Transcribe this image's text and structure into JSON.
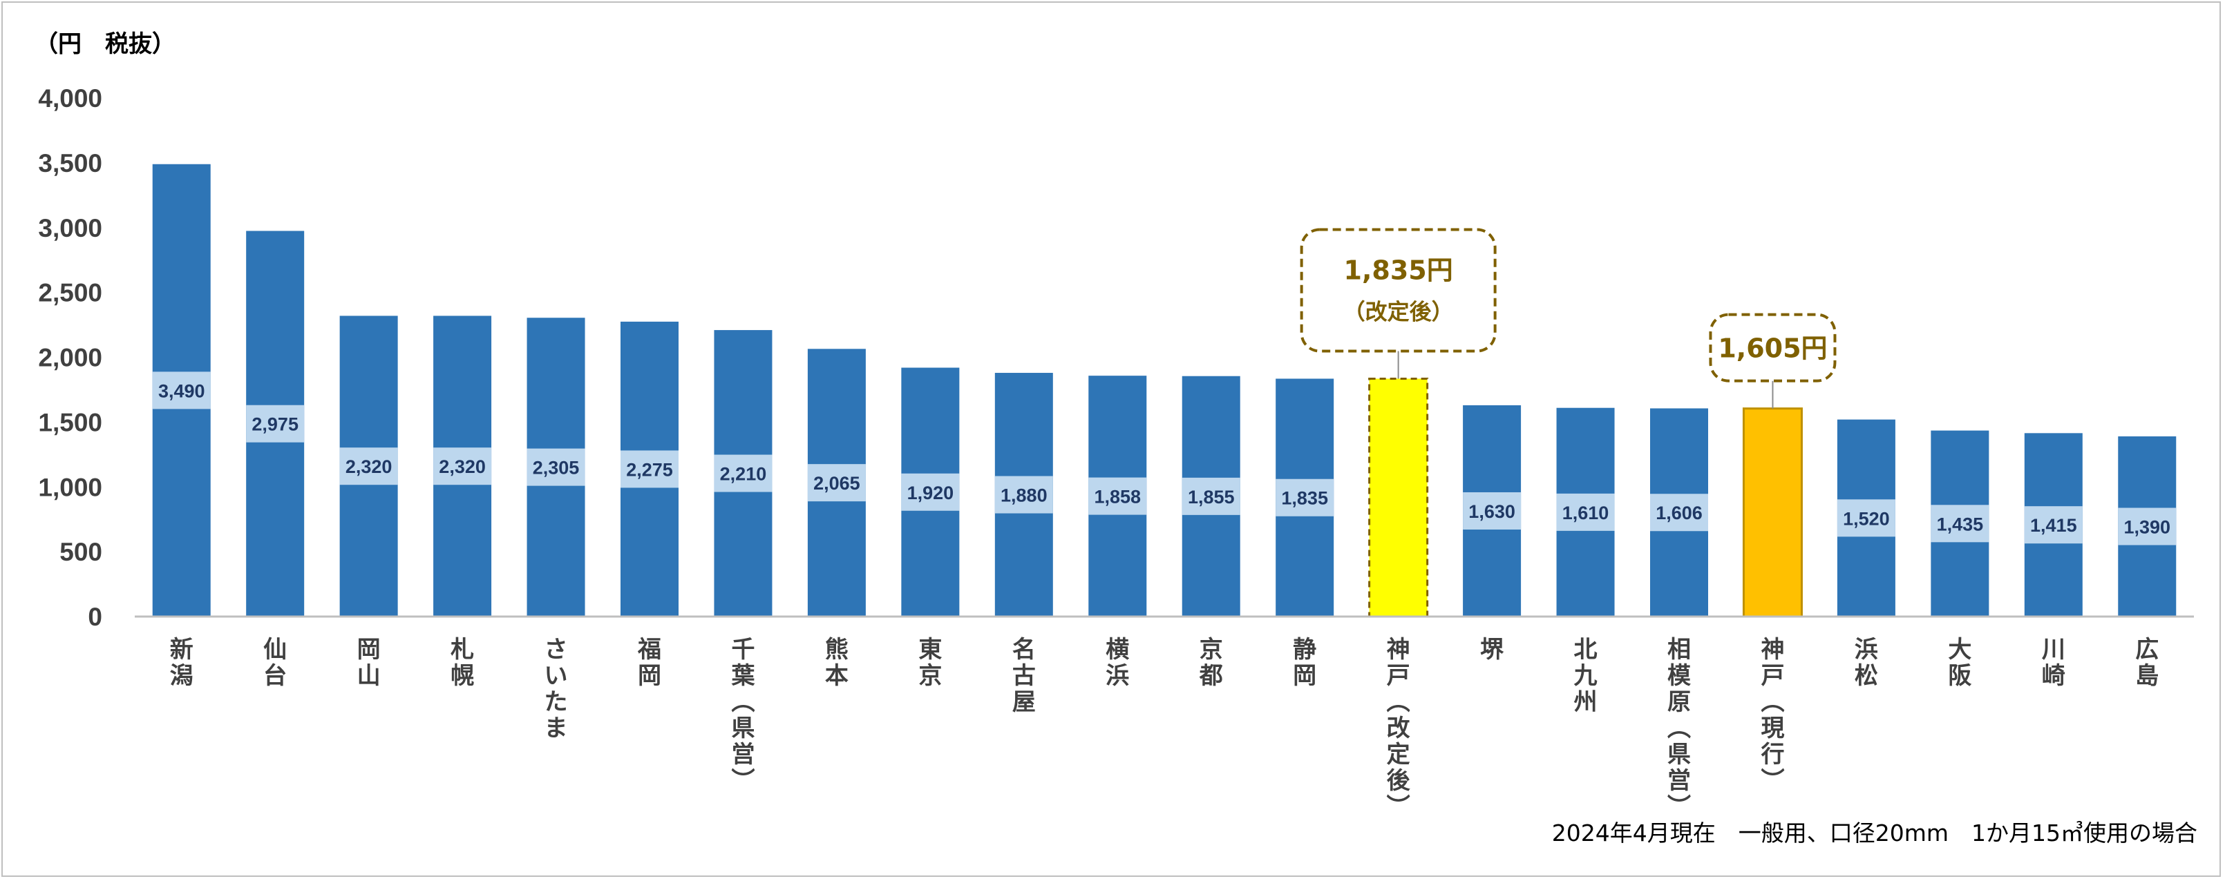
{
  "unit_label": "（円　税抜）",
  "footnote": "2024年4月現在　一般用、口径20mm　1か月15㎥使用の場合",
  "colors": {
    "bar": "#2e75b6",
    "label_box": "#bdd7ee",
    "highlight_revised": "#ffff00",
    "highlight_current": "#ffc000",
    "callout_border": "#7f6000",
    "axis": "#bfbfbf"
  },
  "callouts": [
    {
      "category_index": 13,
      "value_text": "1,835円",
      "sub_text": "（改定後）"
    },
    {
      "category_index": 17,
      "value_text": "1,605円",
      "sub_text": ""
    }
  ],
  "chart_data": {
    "type": "bar",
    "title": "",
    "xlabel": "",
    "ylabel": "（円　税抜）",
    "ylim": [
      0,
      4000
    ],
    "yticks": [
      "0",
      "500",
      "1,000",
      "1,500",
      "2,000",
      "2,500",
      "3,000",
      "3,500",
      "4,000"
    ],
    "grid": false,
    "categories": [
      "新潟",
      "仙台",
      "岡山",
      "札幌",
      "さいたま",
      "福岡",
      "千葉（県営）",
      "熊本",
      "東京",
      "名古屋",
      "横浜",
      "京都",
      "静岡",
      "神戸（改定後）",
      "堺",
      "北九州",
      "相模原（県営）",
      "神戸（現行）",
      "浜松",
      "大阪",
      "川崎",
      "広島"
    ],
    "values": [
      3490,
      2975,
      2320,
      2320,
      2305,
      2275,
      2210,
      2065,
      1920,
      1880,
      1858,
      1855,
      1835,
      1835,
      1630,
      1610,
      1606,
      1605,
      1520,
      1435,
      1415,
      1390
    ],
    "data_labels": [
      "3,490",
      "2,975",
      "2,320",
      "2,320",
      "2,305",
      "2,275",
      "2,210",
      "2,065",
      "1,920",
      "1,880",
      "1,858",
      "1,855",
      "1,835",
      "",
      "1,630",
      "1,610",
      "1,606",
      "",
      "1,520",
      "1,435",
      "1,415",
      "1,390"
    ],
    "highlight": {
      "13": "revised",
      "17": "current"
    }
  }
}
